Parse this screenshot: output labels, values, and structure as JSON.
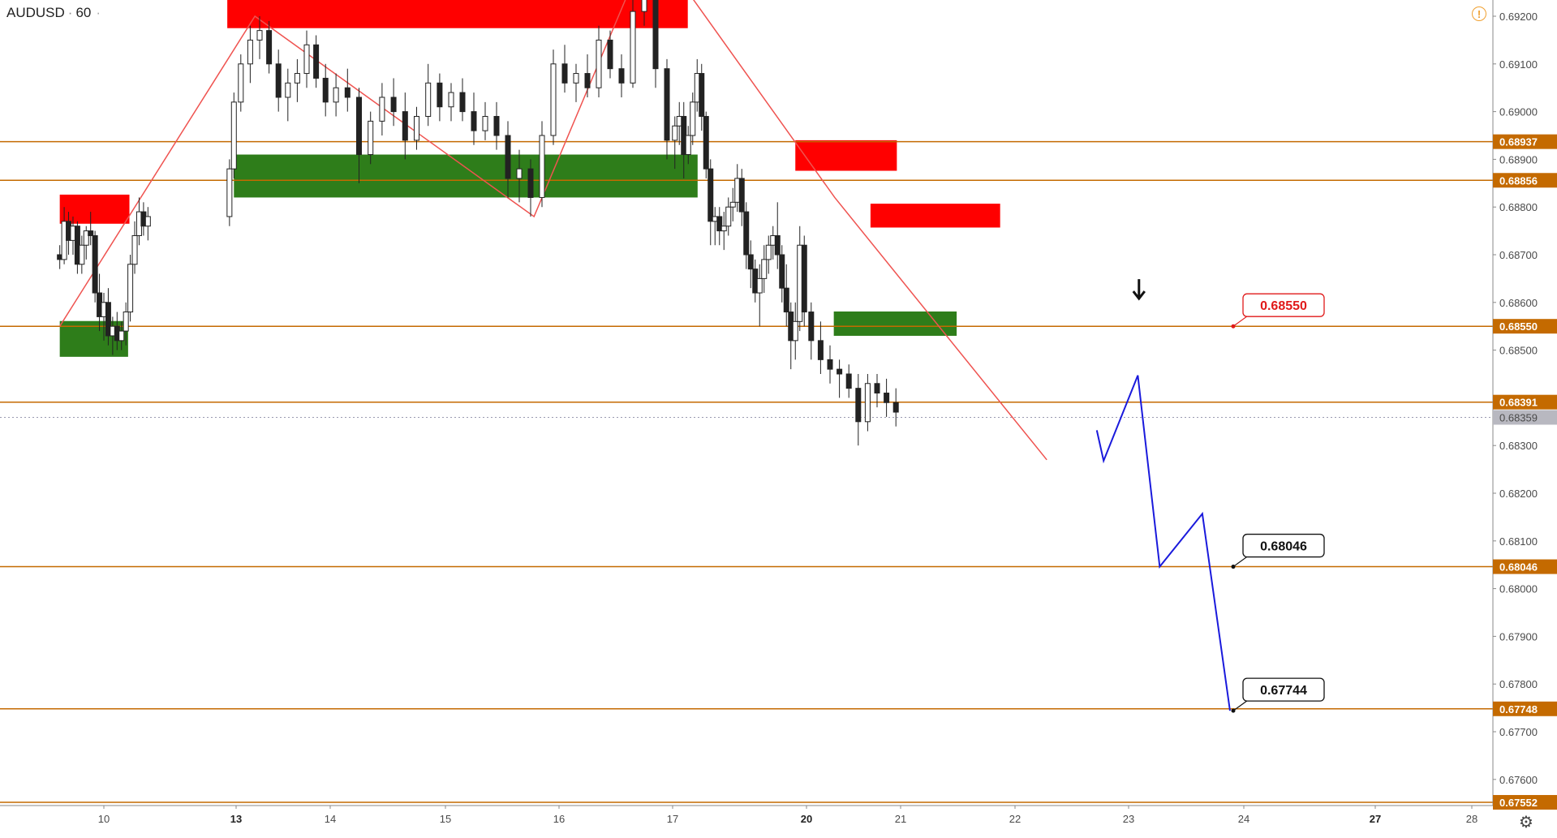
{
  "symbol": {
    "name": "AUDUSD",
    "separator": "·",
    "interval": "60",
    "more": "·"
  },
  "icons": {
    "alert": "alert-circle-icon",
    "settings": "gear-icon",
    "alert_glyph": "!",
    "settings_glyph": "⚙"
  },
  "colors": {
    "candle": "#222222",
    "level_line": "#c46a00",
    "supply_zone": "#ff0000",
    "demand_zone": "#2e7d1a",
    "zigzag": "#ef5350",
    "projection": "#1a1adc",
    "current_price_badge": "#b8b8c0"
  },
  "chart_data": {
    "type": "candlestick",
    "symbol": "AUDUSD",
    "timeframe": "60",
    "y_range": [
      0.6745,
      0.6927
    ],
    "price_ticks": [
      "0.69200",
      "0.69100",
      "0.69000",
      "0.68900",
      "0.68800",
      "0.68700",
      "0.68600",
      "0.68500",
      "0.68300",
      "0.68200",
      "0.68100",
      "0.68000",
      "0.67900",
      "0.67800",
      "0.67700",
      "0.67600"
    ],
    "time_ticks": [
      {
        "label": "10",
        "bold": false
      },
      {
        "label": "13",
        "bold": true
      },
      {
        "label": "14",
        "bold": false
      },
      {
        "label": "15",
        "bold": false
      },
      {
        "label": "16",
        "bold": false
      },
      {
        "label": "17",
        "bold": false
      },
      {
        "label": "20",
        "bold": true
      },
      {
        "label": "21",
        "bold": false
      },
      {
        "label": "22",
        "bold": false
      },
      {
        "label": "23",
        "bold": false
      },
      {
        "label": "24",
        "bold": false
      },
      {
        "label": "27",
        "bold": true
      },
      {
        "label": "28",
        "bold": false
      }
    ],
    "horizontal_levels": [
      {
        "price": 0.68937,
        "label": "0.68937"
      },
      {
        "price": 0.68856,
        "label": "0.68856"
      },
      {
        "price": 0.6855,
        "label": "0.68550"
      },
      {
        "price": 0.68391,
        "label": "0.68391"
      },
      {
        "price": 0.68046,
        "label": "0.68046"
      },
      {
        "price": 0.67748,
        "label": "0.67748"
      },
      {
        "price": 0.67552,
        "label": "0.67552"
      }
    ],
    "current_price": {
      "price": 0.68359,
      "label": "0.68359"
    },
    "callouts": [
      {
        "label": "0.68550",
        "price": 0.6855,
        "style": "red"
      },
      {
        "label": "0.68046",
        "price": 0.68046,
        "style": "black"
      },
      {
        "label": "0.67744",
        "price": 0.67744,
        "style": "black"
      }
    ],
    "zones": [
      {
        "type": "supply",
        "day_start": 9.0,
        "day_end": 10.58,
        "price_top": 0.68826,
        "price_bottom": 0.68765
      },
      {
        "type": "supply",
        "day_start": 12.8,
        "day_end": 17.34,
        "price_top": 0.69268,
        "price_bottom": 0.69175
      },
      {
        "type": "supply",
        "day_start": 19.75,
        "day_end": 20.96,
        "price_top": 0.6894,
        "price_bottom": 0.68876
      },
      {
        "type": "supply",
        "day_start": 20.68,
        "day_end": 21.87,
        "price_top": 0.68807,
        "price_bottom": 0.68757
      },
      {
        "type": "demand",
        "day_start": 12.95,
        "day_end": 17.56,
        "price_top": 0.6891,
        "price_bottom": 0.6882
      },
      {
        "type": "demand",
        "day_start": 9.0,
        "day_end": 10.55,
        "price_top": 0.68561,
        "price_bottom": 0.68486
      },
      {
        "type": "demand",
        "day_start": 20.29,
        "day_end": 21.49,
        "price_top": 0.68581,
        "price_bottom": 0.6853
      }
    ],
    "zigzag_points": [
      {
        "day": 9.0,
        "price": 0.6855
      },
      {
        "day": 13.2,
        "price": 0.692
      },
      {
        "day": 15.78,
        "price": 0.6878
      },
      {
        "day": 16.7,
        "price": 0.693
      },
      {
        "day": 17.35,
        "price": 0.6925
      },
      {
        "day": 20.3,
        "price": 0.6882
      },
      {
        "day": 22.28,
        "price": 0.6827
      }
    ],
    "projection_points": [
      {
        "day": 22.72,
        "price": 0.68332
      },
      {
        "day": 22.78,
        "price": 0.68268
      },
      {
        "day": 23.08,
        "price": 0.68447
      },
      {
        "day": 23.27,
        "price": 0.68046
      },
      {
        "day": 23.64,
        "price": 0.68157
      },
      {
        "day": 23.88,
        "price": 0.67744
      }
    ],
    "arrow_annotation": {
      "day": 23.09,
      "price": 0.68608,
      "direction": "down"
    },
    "candles": [
      [
        9.0,
        0.687,
        0.6872,
        0.6867,
        0.6869
      ],
      [
        9.1,
        0.6869,
        0.688,
        0.6868,
        0.6877
      ],
      [
        9.2,
        0.6877,
        0.6879,
        0.687,
        0.6873
      ],
      [
        9.3,
        0.6873,
        0.6878,
        0.687,
        0.6876
      ],
      [
        9.4,
        0.6876,
        0.6877,
        0.6866,
        0.6868
      ],
      [
        9.5,
        0.6868,
        0.6874,
        0.6866,
        0.6872
      ],
      [
        9.6,
        0.6872,
        0.6876,
        0.6869,
        0.6875
      ],
      [
        9.7,
        0.6875,
        0.6879,
        0.6872,
        0.6874
      ],
      [
        9.8,
        0.6874,
        0.6875,
        0.686,
        0.6862
      ],
      [
        9.9,
        0.6862,
        0.6866,
        0.6854,
        0.6857
      ],
      [
        10.0,
        0.6857,
        0.6862,
        0.6852,
        0.686
      ],
      [
        10.1,
        0.686,
        0.6863,
        0.6851,
        0.6853
      ],
      [
        10.2,
        0.6853,
        0.6857,
        0.6849,
        0.6855
      ],
      [
        10.3,
        0.6855,
        0.6858,
        0.685,
        0.6852
      ],
      [
        10.4,
        0.6852,
        0.6856,
        0.685,
        0.6854
      ],
      [
        10.5,
        0.6854,
        0.686,
        0.6851,
        0.6858
      ],
      [
        10.6,
        0.6858,
        0.687,
        0.6856,
        0.6868
      ],
      [
        10.7,
        0.6868,
        0.6877,
        0.6866,
        0.6874
      ],
      [
        10.8,
        0.6874,
        0.6882,
        0.6872,
        0.6879
      ],
      [
        10.9,
        0.6879,
        0.6881,
        0.6874,
        0.6876
      ],
      [
        11.0,
        0.6876,
        0.688,
        0.6873,
        0.6878
      ],
      [
        12.85,
        0.6878,
        0.689,
        0.6876,
        0.6888
      ],
      [
        12.95,
        0.6888,
        0.6904,
        0.6886,
        0.6902
      ],
      [
        13.05,
        0.6902,
        0.6912,
        0.69,
        0.691
      ],
      [
        13.15,
        0.691,
        0.6918,
        0.6906,
        0.6915
      ],
      [
        13.25,
        0.6915,
        0.692,
        0.6911,
        0.6917
      ],
      [
        13.35,
        0.6917,
        0.6919,
        0.6908,
        0.691
      ],
      [
        13.45,
        0.691,
        0.6913,
        0.69,
        0.6903
      ],
      [
        13.55,
        0.6903,
        0.6909,
        0.6898,
        0.6906
      ],
      [
        13.65,
        0.6906,
        0.6911,
        0.6902,
        0.6908
      ],
      [
        13.75,
        0.6908,
        0.6917,
        0.6905,
        0.6914
      ],
      [
        13.85,
        0.6914,
        0.6916,
        0.6905,
        0.6907
      ],
      [
        13.95,
        0.6907,
        0.691,
        0.6899,
        0.6902
      ],
      [
        14.05,
        0.6902,
        0.6908,
        0.6899,
        0.6905
      ],
      [
        14.15,
        0.6905,
        0.6909,
        0.69,
        0.6903
      ],
      [
        14.25,
        0.6903,
        0.6905,
        0.6885,
        0.6891
      ],
      [
        14.35,
        0.6891,
        0.69,
        0.6889,
        0.6898
      ],
      [
        14.45,
        0.6898,
        0.6906,
        0.6895,
        0.6903
      ],
      [
        14.55,
        0.6903,
        0.6907,
        0.6897,
        0.69
      ],
      [
        14.65,
        0.69,
        0.6904,
        0.689,
        0.6894
      ],
      [
        14.75,
        0.6894,
        0.6901,
        0.6892,
        0.6899
      ],
      [
        14.85,
        0.6899,
        0.691,
        0.6897,
        0.6906
      ],
      [
        14.95,
        0.6906,
        0.6908,
        0.6898,
        0.6901
      ],
      [
        15.05,
        0.6901,
        0.6906,
        0.6898,
        0.6904
      ],
      [
        15.15,
        0.6904,
        0.6907,
        0.6898,
        0.69
      ],
      [
        15.25,
        0.69,
        0.6904,
        0.6893,
        0.6896
      ],
      [
        15.35,
        0.6896,
        0.6902,
        0.6894,
        0.6899
      ],
      [
        15.45,
        0.6899,
        0.6902,
        0.6892,
        0.6895
      ],
      [
        15.55,
        0.6895,
        0.6898,
        0.6882,
        0.6886
      ],
      [
        15.65,
        0.6886,
        0.6892,
        0.6881,
        0.6888
      ],
      [
        15.75,
        0.6888,
        0.689,
        0.6878,
        0.6882
      ],
      [
        15.85,
        0.6882,
        0.6898,
        0.688,
        0.6895
      ],
      [
        15.95,
        0.6895,
        0.6913,
        0.6893,
        0.691
      ],
      [
        16.05,
        0.691,
        0.6914,
        0.6904,
        0.6906
      ],
      [
        16.15,
        0.6906,
        0.691,
        0.6902,
        0.6908
      ],
      [
        16.25,
        0.6908,
        0.6912,
        0.6903,
        0.6905
      ],
      [
        16.35,
        0.6905,
        0.6918,
        0.6903,
        0.6915
      ],
      [
        16.45,
        0.6915,
        0.6917,
        0.6907,
        0.6909
      ],
      [
        16.55,
        0.6909,
        0.6912,
        0.6903,
        0.6906
      ],
      [
        16.65,
        0.6906,
        0.6924,
        0.6905,
        0.6921
      ],
      [
        16.75,
        0.6921,
        0.6927,
        0.6918,
        0.6925
      ],
      [
        16.85,
        0.6925,
        0.6926,
        0.6905,
        0.6909
      ],
      [
        16.95,
        0.6909,
        0.6911,
        0.689,
        0.6894
      ],
      [
        17.05,
        0.6894,
        0.6899,
        0.6888,
        0.6897
      ],
      [
        17.15,
        0.6897,
        0.6902,
        0.6893,
        0.6899
      ],
      [
        17.25,
        0.6899,
        0.6902,
        0.6886,
        0.6891
      ],
      [
        17.35,
        0.6891,
        0.6897,
        0.6889,
        0.6895
      ],
      [
        17.45,
        0.6895,
        0.6904,
        0.6893,
        0.6902
      ],
      [
        17.55,
        0.6902,
        0.6911,
        0.69,
        0.6908
      ],
      [
        17.65,
        0.6908,
        0.691,
        0.6896,
        0.6899
      ],
      [
        17.75,
        0.6899,
        0.69,
        0.6886,
        0.6888
      ],
      [
        17.85,
        0.6888,
        0.689,
        0.6872,
        0.6877
      ],
      [
        17.95,
        0.6877,
        0.688,
        0.6872,
        0.6878
      ],
      [
        18.05,
        0.6878,
        0.688,
        0.6872,
        0.6875
      ],
      [
        18.15,
        0.6875,
        0.6879,
        0.6871,
        0.6876
      ],
      [
        18.25,
        0.6876,
        0.6882,
        0.6874,
        0.688
      ],
      [
        18.35,
        0.688,
        0.6884,
        0.6877,
        0.6881
      ],
      [
        18.45,
        0.6881,
        0.6889,
        0.6879,
        0.6886
      ],
      [
        18.55,
        0.6886,
        0.6888,
        0.6876,
        0.6879
      ],
      [
        18.65,
        0.6879,
        0.6881,
        0.6867,
        0.687
      ],
      [
        18.75,
        0.687,
        0.6873,
        0.6863,
        0.6867
      ],
      [
        18.85,
        0.6867,
        0.6869,
        0.686,
        0.6862
      ],
      [
        18.95,
        0.6862,
        0.6868,
        0.6855,
        0.6865
      ],
      [
        19.05,
        0.6865,
        0.6872,
        0.6862,
        0.6869
      ],
      [
        19.15,
        0.6869,
        0.6874,
        0.6866,
        0.6872
      ],
      [
        19.25,
        0.6872,
        0.6876,
        0.6869,
        0.6874
      ],
      [
        19.35,
        0.6874,
        0.6881,
        0.6867,
        0.687
      ],
      [
        19.45,
        0.687,
        0.6872,
        0.686,
        0.6863
      ],
      [
        19.55,
        0.6863,
        0.6868,
        0.6855,
        0.6858
      ],
      [
        19.65,
        0.6858,
        0.686,
        0.6846,
        0.6852
      ],
      [
        19.75,
        0.6852,
        0.686,
        0.6848,
        0.6856
      ],
      [
        19.85,
        0.6856,
        0.6876,
        0.6854,
        0.6872
      ],
      [
        19.95,
        0.6872,
        0.6874,
        0.6855,
        0.6858
      ],
      [
        20.05,
        0.6858,
        0.686,
        0.6848,
        0.6852
      ],
      [
        20.15,
        0.6852,
        0.6856,
        0.6845,
        0.6848
      ],
      [
        20.25,
        0.6848,
        0.6851,
        0.6843,
        0.6846
      ],
      [
        20.35,
        0.6846,
        0.6848,
        0.684,
        0.6845
      ],
      [
        20.45,
        0.6845,
        0.6847,
        0.684,
        0.6842
      ],
      [
        20.55,
        0.6842,
        0.6845,
        0.683,
        0.6835
      ],
      [
        20.65,
        0.6835,
        0.6845,
        0.6833,
        0.6843
      ],
      [
        20.75,
        0.6843,
        0.6845,
        0.6838,
        0.6841
      ],
      [
        20.85,
        0.6841,
        0.6844,
        0.6836,
        0.6839
      ],
      [
        20.95,
        0.6839,
        0.6842,
        0.6834,
        0.6837
      ]
    ]
  }
}
